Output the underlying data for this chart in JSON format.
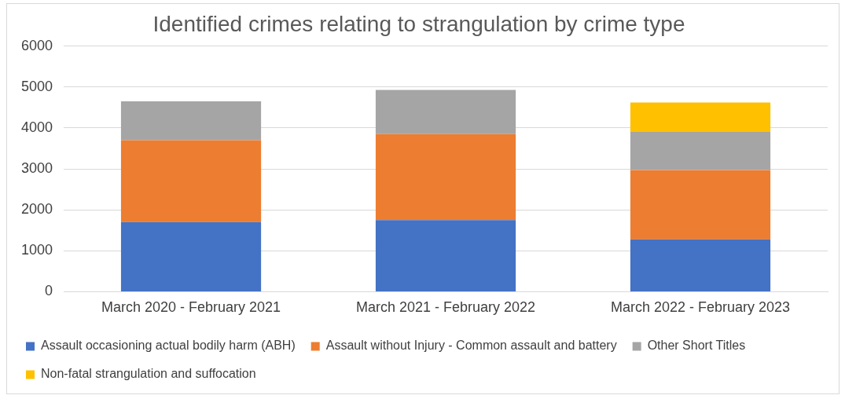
{
  "chart_data": {
    "type": "bar",
    "title": "Identified crimes relating to strangulation by crime type",
    "categories": [
      "March 2020 - February 2021",
      "March 2021 - February 2022",
      "March 2022 - February 2023"
    ],
    "series": [
      {
        "name": "Assault occasioning actual bodily harm (ABH)",
        "color": "#4472c4",
        "values": [
          1700,
          1750,
          1280
        ]
      },
      {
        "name": "Assault without Injury - Common assault and battery",
        "color": "#ed7d31",
        "values": [
          2000,
          2100,
          1690
        ]
      },
      {
        "name": "Other Short Titles",
        "color": "#a5a5a5",
        "values": [
          950,
          1080,
          930
        ]
      },
      {
        "name": "Non-fatal strangulation and suffocation",
        "color": "#ffc000",
        "values": [
          null,
          null,
          720
        ]
      }
    ],
    "stacked": true,
    "ylim": [
      0,
      6000
    ],
    "yticks": [
      0,
      1000,
      2000,
      3000,
      4000,
      5000,
      6000
    ],
    "grid": "y",
    "legend": "bottom"
  }
}
